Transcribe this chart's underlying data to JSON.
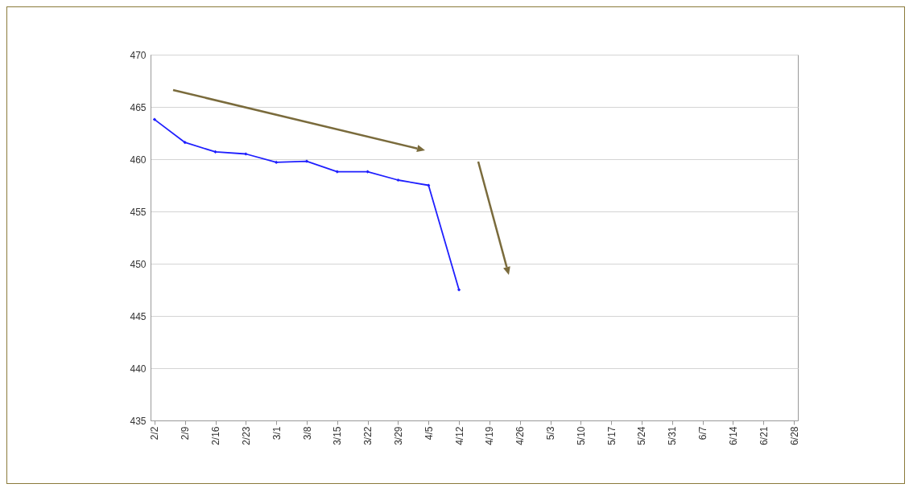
{
  "chart_data": {
    "type": "line",
    "categories": [
      "2/2",
      "2/9",
      "2/16",
      "2/23",
      "3/1",
      "3/8",
      "3/15",
      "3/22",
      "3/29",
      "4/5",
      "4/12",
      "4/19",
      "4/26",
      "5/3",
      "5/10",
      "5/17",
      "5/24",
      "5/31",
      "6/7",
      "6/14",
      "6/21",
      "6/28"
    ],
    "series": [
      {
        "color": "#1f1fff",
        "values": [
          463.8,
          461.6,
          460.7,
          460.5,
          459.7,
          459.8,
          458.8,
          458.8,
          458.0,
          457.5,
          447.5,
          null,
          null,
          null,
          null,
          null,
          null,
          null,
          null,
          null,
          null,
          null
        ]
      }
    ],
    "ylim": [
      435,
      470
    ],
    "yticks": [
      435,
      440,
      445,
      450,
      455,
      460,
      465,
      470
    ],
    "grid": "y",
    "marker": "diamond",
    "line_style": "solid"
  }
}
